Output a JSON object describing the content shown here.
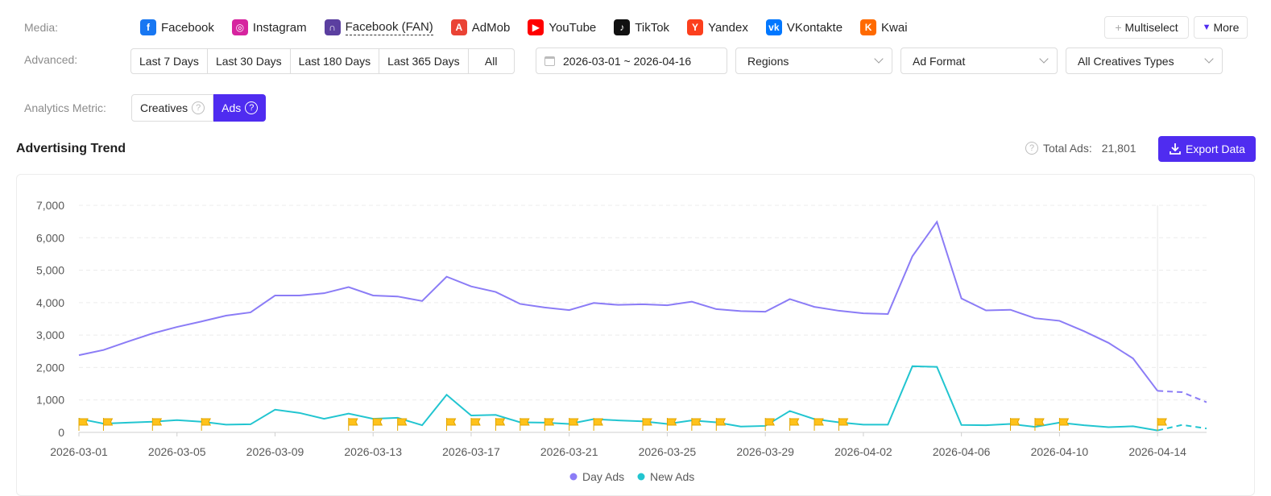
{
  "filters": {
    "media_label": "Media:",
    "media": [
      {
        "label": "Facebook",
        "icon": "facebook-icon",
        "color": "#1877f2",
        "glyph": "f",
        "active": false
      },
      {
        "label": "Instagram",
        "icon": "instagram-icon",
        "color": "#d6249f",
        "glyph": "◎",
        "active": false
      },
      {
        "label": "Facebook (FAN)",
        "icon": "facebook-audience-network-icon",
        "color": "#5b3fa0",
        "glyph": "∩",
        "active": true
      },
      {
        "label": "AdMob",
        "icon": "admob-icon",
        "color": "#ea4335",
        "glyph": "A",
        "active": false
      },
      {
        "label": "YouTube",
        "icon": "youtube-icon",
        "color": "#ff0000",
        "glyph": "▶",
        "active": false
      },
      {
        "label": "TikTok",
        "icon": "tiktok-icon",
        "color": "#111111",
        "glyph": "♪",
        "active": false
      },
      {
        "label": "Yandex",
        "icon": "yandex-icon",
        "color": "#fc3f1d",
        "glyph": "Y",
        "active": false
      },
      {
        "label": "VKontakte",
        "icon": "vkontakte-icon",
        "color": "#0077ff",
        "glyph": "vk",
        "active": false
      },
      {
        "label": "Kwai",
        "icon": "kwai-icon",
        "color": "#ff6a00",
        "glyph": "K",
        "active": false
      }
    ],
    "multiselect_label": "Multiselect",
    "more_label": "More",
    "advanced_label": "Advanced:",
    "ranges": [
      "Last 7 Days",
      "Last 30 Days",
      "Last 180 Days",
      "Last 365 Days",
      "All"
    ],
    "date_range": "2026-03-01 ~ 2026-04-16",
    "regions_placeholder": "Regions",
    "ad_format_placeholder": "Ad Format",
    "creative_types": "All Creatives Types",
    "metric_label": "Analytics Metric:",
    "metric_options": [
      "Creatives",
      "Ads"
    ],
    "metric_selected": "Ads"
  },
  "trend": {
    "title": "Advertising Trend",
    "total_label": "Total Ads:",
    "total_value": "21,801",
    "export_label": "Export Data"
  },
  "colors": {
    "accent": "#4f2cf0",
    "day_ads": "#8b7cf6",
    "new_ads": "#22c5d0",
    "flag": "#ffc21a"
  },
  "chart_data": {
    "type": "line",
    "x": [
      "2026-03-01",
      "2026-03-02",
      "2026-03-03",
      "2026-03-04",
      "2026-03-05",
      "2026-03-06",
      "2026-03-07",
      "2026-03-08",
      "2026-03-09",
      "2026-03-10",
      "2026-03-11",
      "2026-03-12",
      "2026-03-13",
      "2026-03-14",
      "2026-03-15",
      "2026-03-16",
      "2026-03-17",
      "2026-03-18",
      "2026-03-19",
      "2026-03-20",
      "2026-03-21",
      "2026-03-22",
      "2026-03-23",
      "2026-03-24",
      "2026-03-25",
      "2026-03-26",
      "2026-03-27",
      "2026-03-28",
      "2026-03-29",
      "2026-03-30",
      "2026-03-31",
      "2026-04-01",
      "2026-04-02",
      "2026-04-03",
      "2026-04-04",
      "2026-04-05",
      "2026-04-06",
      "2026-04-07",
      "2026-04-08",
      "2026-04-09",
      "2026-04-10",
      "2026-04-11",
      "2026-04-12",
      "2026-04-13",
      "2026-04-14",
      "2026-04-15",
      "2026-04-16"
    ],
    "tick_labels": [
      "2026-03-01",
      "2026-03-05",
      "2026-03-09",
      "2026-03-13",
      "2026-03-17",
      "2026-03-21",
      "2026-03-25",
      "2026-03-29",
      "2026-04-02",
      "2026-04-06",
      "2026-04-10",
      "2026-04-14"
    ],
    "yticks": [
      "0",
      "1,000",
      "2,000",
      "3,000",
      "4,000",
      "5,000",
      "6,000",
      "7,000"
    ],
    "ylim": [
      0,
      7000
    ],
    "grid": true,
    "legend_position": "bottom",
    "partial_from": "2026-04-14",
    "series": [
      {
        "name": "Day Ads",
        "values": [
          2380,
          2540,
          2800,
          3050,
          3250,
          3420,
          3600,
          3700,
          4220,
          4220,
          4290,
          4480,
          4220,
          4190,
          4050,
          4800,
          4500,
          4330,
          3960,
          3850,
          3770,
          3990,
          3930,
          3950,
          3920,
          4030,
          3800,
          3740,
          3720,
          4110,
          3870,
          3750,
          3670,
          3650,
          5430,
          6490,
          4130,
          3760,
          3780,
          3520,
          3440,
          3120,
          2760,
          2280,
          1280,
          1240,
          930
        ]
      },
      {
        "name": "New Ads",
        "values": [
          420,
          270,
          300,
          330,
          380,
          330,
          240,
          250,
          700,
          600,
          420,
          580,
          420,
          450,
          220,
          1160,
          520,
          540,
          310,
          300,
          260,
          410,
          370,
          340,
          260,
          370,
          310,
          180,
          200,
          660,
          410,
          310,
          240,
          240,
          2040,
          2020,
          230,
          220,
          260,
          170,
          300,
          220,
          160,
          190,
          60,
          230,
          120
        ]
      }
    ],
    "flags": [
      "2026-03-01",
      "2026-03-02",
      "2026-03-04",
      "2026-03-06",
      "2026-03-12",
      "2026-03-13",
      "2026-03-14",
      "2026-03-16",
      "2026-03-17",
      "2026-03-18",
      "2026-03-19",
      "2026-03-20",
      "2026-03-21",
      "2026-03-22",
      "2026-03-24",
      "2026-03-25",
      "2026-03-26",
      "2026-03-27",
      "2026-03-29",
      "2026-03-30",
      "2026-03-31",
      "2026-04-01",
      "2026-04-08",
      "2026-04-09",
      "2026-04-10",
      "2026-04-14"
    ]
  }
}
